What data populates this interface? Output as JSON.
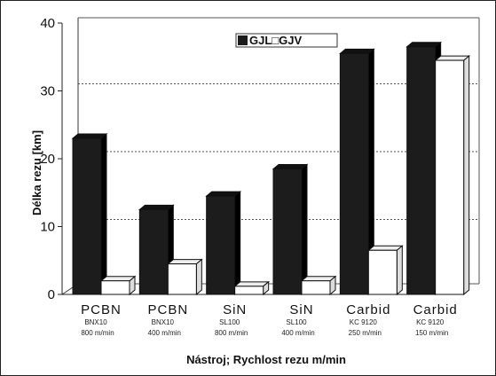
{
  "chart_data": {
    "type": "bar",
    "title": "",
    "xlabel": "Nástroj; Rychlost rezu m/min",
    "ylabel": "Délka rezu   [km]",
    "ylim": [
      0,
      40
    ],
    "yticks": [
      "0",
      "10",
      "20",
      "30",
      "40"
    ],
    "grid": "dotted horizontal",
    "legend_placement": "top-right",
    "categories": [
      {
        "name": "PCBN",
        "line1": "BNX10",
        "line2": "800 m/min"
      },
      {
        "name": "PCBN",
        "line1": "BNX10",
        "line2": "400 m/min"
      },
      {
        "name": "SiN",
        "line1": "SL100",
        "line2": "800 m/min"
      },
      {
        "name": "SiN",
        "line1": "SL100",
        "line2": "400 m/min"
      },
      {
        "name": "Carbid",
        "line1": "KC 9120",
        "line2": "250 m/min"
      },
      {
        "name": "Carbid",
        "line1": "KC 9120",
        "line2": "150 m/min"
      }
    ],
    "series": [
      {
        "name": "GJL",
        "color": "#1c1c1c",
        "values": [
          23,
          12.5,
          14.5,
          18.5,
          35.5,
          36.5
        ]
      },
      {
        "name": "GJV",
        "color": "#ffffff",
        "values": [
          2,
          4.5,
          1.2,
          2,
          6.5,
          34.5
        ]
      }
    ],
    "legend_text": "GJL□GJV"
  }
}
